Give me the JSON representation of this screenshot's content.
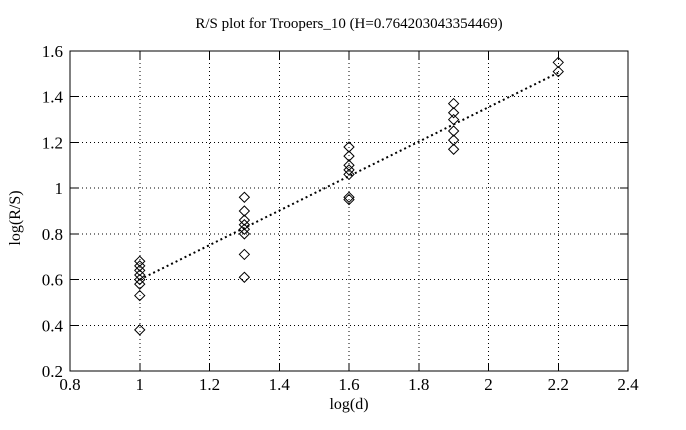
{
  "colors": {
    "background": "#ffffff",
    "ink": "#000000"
  },
  "chart_data": {
    "type": "scatter",
    "title": "R/S plot for Troopers_10 (H=0.764203043354469)",
    "xlabel": "log(d)",
    "ylabel": "log(R/S)",
    "xlim": [
      0.8,
      2.4
    ],
    "ylim": [
      0.2,
      1.6
    ],
    "xticks": [
      0.8,
      1.0,
      1.2,
      1.4,
      1.6,
      1.8,
      2.0,
      2.2,
      2.4
    ],
    "xtick_labels": [
      "0.8",
      "1",
      "1.2",
      "1.4",
      "1.6",
      "1.8",
      "2",
      "2.2",
      "2.4"
    ],
    "yticks": [
      0.2,
      0.4,
      0.6,
      0.8,
      1.0,
      1.2,
      1.4,
      1.6
    ],
    "ytick_labels": [
      "0.2",
      "0.4",
      "0.6",
      "0.8",
      "1",
      "1.2",
      "1.4",
      "1.6"
    ],
    "grid": "dotted",
    "legend": "none",
    "series": [
      {
        "name": "rescaled-range-points",
        "marker": "open-diamond",
        "x": [
          1.0,
          1.0,
          1.0,
          1.0,
          1.0,
          1.0,
          1.0,
          1.0,
          1.3,
          1.3,
          1.3,
          1.3,
          1.3,
          1.3,
          1.3,
          1.3,
          1.6,
          1.6,
          1.6,
          1.6,
          1.6,
          1.6,
          1.6,
          1.9,
          1.9,
          1.9,
          1.9,
          1.9,
          1.9,
          2.2,
          2.2
        ],
        "y": [
          0.68,
          0.66,
          0.64,
          0.62,
          0.6,
          0.58,
          0.53,
          0.38,
          0.96,
          0.9,
          0.86,
          0.84,
          0.82,
          0.8,
          0.71,
          0.61,
          1.18,
          1.14,
          1.1,
          1.08,
          1.06,
          0.96,
          0.95,
          1.37,
          1.33,
          1.3,
          1.25,
          1.21,
          1.17,
          1.55,
          1.51
        ]
      }
    ],
    "fit_line": {
      "style": "dotted",
      "x_start": 1.0,
      "y_start": 0.6,
      "x_end": 2.2,
      "y_end": 1.505,
      "H": "0.764203043354469"
    }
  }
}
